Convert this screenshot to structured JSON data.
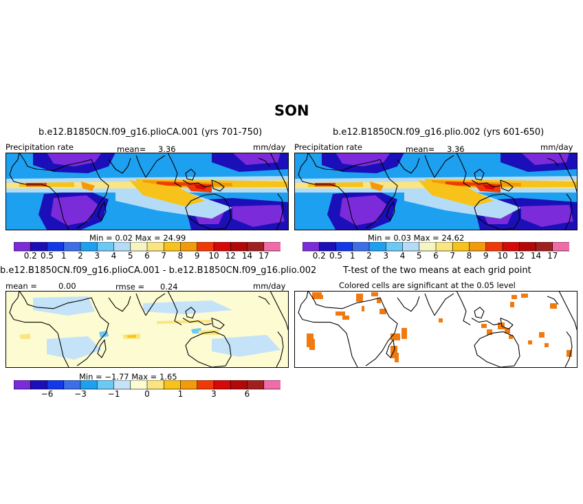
{
  "season": "SON",
  "colors": {
    "precip_levels": [
      "#7b2bd9",
      "#1a0fb8",
      "#1338e8",
      "#3d6ee8",
      "#1ea0f0",
      "#6cc8f5",
      "#b4dcf7",
      "#f5f5c2",
      "#fbe580",
      "#f7c31b",
      "#f39a0a",
      "#ef3a07",
      "#d60808",
      "#b30808",
      "#a02020",
      "#f06ca8"
    ],
    "diff_levels": [
      "#7b2bd9",
      "#1a0fb8",
      "#1338e8",
      "#3d6ee8",
      "#1ea0f0",
      "#6cc8f5",
      "#c5e3f8",
      "#fdfbd2",
      "#fbe580",
      "#f7c31b",
      "#f39a0a",
      "#ef3a07",
      "#d60808",
      "#b30808",
      "#a02020",
      "#f06ca8"
    ],
    "significant": "#f07a10"
  },
  "panel1": {
    "title": "b.e12.B1850CN.f09_g16.plioCA.001 (yrs 701-750)",
    "left_label": "Precipitation rate",
    "mean_label": "mean=",
    "mean": "3.36",
    "units": "mm/day",
    "minmax": "Min =   0.02  Max =   24.99"
  },
  "panel2": {
    "title": "b.e12.B1850CN.f09_g16.plio.002 (yrs 601-650)",
    "left_label": "Precipitation rate",
    "mean_label": "mean=",
    "mean": "3.36",
    "units": "mm/day",
    "minmax": "Min =   0.03  Max =   24.62"
  },
  "panel3": {
    "title": "b.e12.B1850CN.f09_g16.plioCA.001 - b.e12.B1850CN.f09_g16.plio.002",
    "mean_label": "mean =",
    "mean": "0.00",
    "rmse_label": "rmse =",
    "rmse": "0.24",
    "units": "mm/day",
    "minmax": "Min =  −1.77  Max =    1.65"
  },
  "panel4": {
    "title": "T-test of the two means at each grid point",
    "subtitle": "Colored cells are significant at the 0.05 level"
  },
  "precip_ticks": [
    "0.2",
    "0.5",
    "1",
    "2",
    "3",
    "4",
    "5",
    "6",
    "7",
    "8",
    "9",
    "10",
    "12",
    "14",
    "17"
  ],
  "diff_ticks": [
    "−6",
    "−3",
    "−1",
    "0",
    "1",
    "3",
    "6"
  ]
}
